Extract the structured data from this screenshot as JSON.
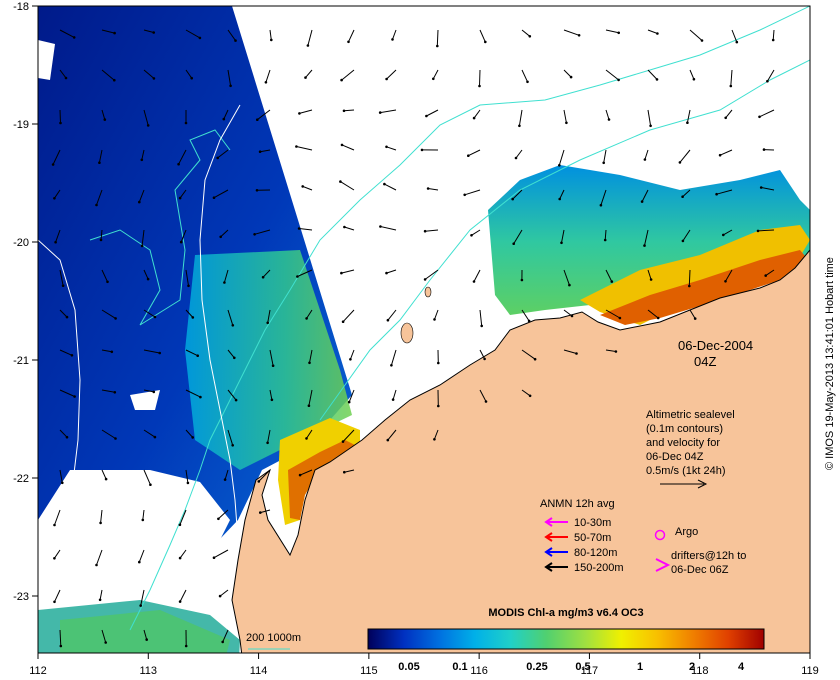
{
  "map": {
    "date": "06-Dec-2004",
    "time": "04Z",
    "credit": "© IMOS 19-May-2013 13:41:01 Hobart time",
    "lon_ticks": [
      "112",
      "113",
      "114",
      "115",
      "116",
      "117",
      "118",
      "119"
    ],
    "lat_ticks": [
      "-18",
      "-19",
      "-20",
      "-21",
      "-22",
      "-23"
    ],
    "bathy_label": "200  1000m",
    "colors": {
      "land": "#f7c49a",
      "no_data": "#ffffff",
      "bathy_200": "#40e0d0",
      "bathy_1000": "#ffffff",
      "vectors": "#000000"
    }
  },
  "altimetry_note": {
    "line1": "Altimetric sealevel",
    "line2": "(0.1m contours)",
    "line3": "and velocity for",
    "line4": "06-Dec 04Z",
    "line5": "0.5m/s (1kt 24h)"
  },
  "legend": {
    "title": "ANMN 12h avg",
    "items": [
      {
        "label": "10-30m",
        "color": "#ff00ff"
      },
      {
        "label": "50-70m",
        "color": "#ff0000"
      },
      {
        "label": "80-120m",
        "color": "#0000ff"
      },
      {
        "label": "150-200m",
        "color": "#000000"
      }
    ],
    "argo_label": "Argo",
    "drifters_line1": "drifters@12h to",
    "drifters_line2": "06-Dec 06Z",
    "marker_color": "#ff00ff"
  },
  "colorbar": {
    "title": "MODIS Chl-a mg/m3 v6.4 OC3",
    "ticks": [
      "0.05",
      "0.1",
      "0.25",
      "0.5",
      "1",
      "2",
      "4"
    ],
    "stops": [
      "#00005a",
      "#0030c0",
      "#0070e0",
      "#00b0e8",
      "#20d0c8",
      "#50d070",
      "#a0e040",
      "#f0f000",
      "#f8c000",
      "#f08000",
      "#e04000",
      "#a00000"
    ]
  }
}
